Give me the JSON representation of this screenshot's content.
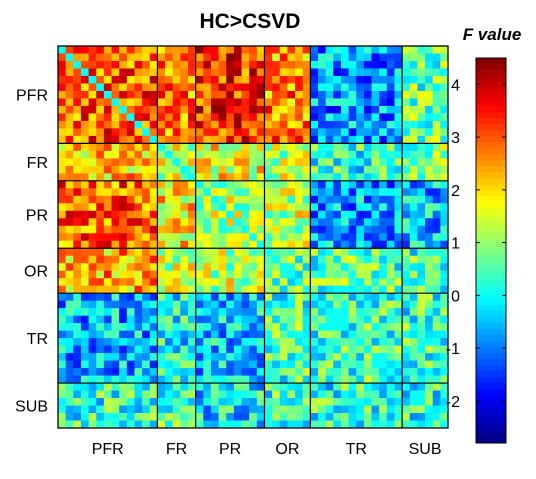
{
  "chart_data": {
    "type": "heatmap",
    "title": "HC>CSVD",
    "colorbar": {
      "label": "F value",
      "ticks": [
        4,
        3,
        2,
        1,
        0,
        -1,
        -2
      ],
      "tick_labels": [
        "4",
        "3",
        "2",
        "1",
        "0",
        "-1",
        "-2"
      ],
      "range": [
        -2.8,
        4.5
      ],
      "colormap": "jet"
    },
    "regions": [
      "PFR",
      "FR",
      "PR",
      "OR",
      "TR",
      "SUB"
    ],
    "region_sizes": [
      13,
      5,
      9,
      6,
      12,
      6
    ],
    "region_order_rows": "top-to-bottom",
    "region_order_cols": "left-to-right",
    "block_mean_F": [
      [
        3.0,
        2.8,
        3.3,
        2.6,
        -0.8,
        0.6
      ],
      [
        2.2,
        1.4,
        1.7,
        1.2,
        0.2,
        0.8
      ],
      [
        2.9,
        1.9,
        1.2,
        1.3,
        -0.7,
        -0.5
      ],
      [
        2.3,
        1.3,
        1.3,
        0.5,
        0.5,
        0.4
      ],
      [
        -0.6,
        0.0,
        -0.4,
        0.4,
        0.3,
        0.3
      ],
      [
        0.2,
        0.4,
        -0.2,
        0.3,
        0.2,
        0.2
      ]
    ],
    "diagonal_F": 0.0
  },
  "colors": {
    "background": "#ffffff",
    "separator": "#000000"
  }
}
